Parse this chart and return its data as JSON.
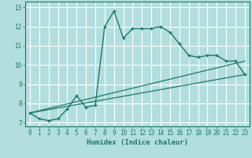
{
  "title": "",
  "xlabel": "Humidex (Indice chaleur)",
  "ylabel": "",
  "bg_color": "#b2dede",
  "grid_color": "#ffffff",
  "line_color": "#1a7a6a",
  "xlim": [
    -0.5,
    23.5
  ],
  "ylim": [
    6.8,
    13.3
  ],
  "yticks": [
    7,
    8,
    9,
    10,
    11,
    12,
    13
  ],
  "xticks": [
    0,
    1,
    2,
    3,
    4,
    5,
    6,
    7,
    8,
    9,
    10,
    11,
    12,
    13,
    14,
    15,
    16,
    17,
    18,
    19,
    20,
    21,
    22,
    23
  ],
  "line1_x": [
    0,
    1,
    2,
    3,
    4,
    5,
    6,
    7,
    8,
    9,
    10,
    11,
    12,
    13,
    14,
    15,
    16,
    17,
    18,
    19,
    20,
    21,
    22,
    23
  ],
  "line1_y": [
    7.5,
    7.2,
    7.1,
    7.2,
    7.7,
    8.4,
    7.8,
    7.9,
    12.0,
    12.8,
    11.4,
    11.9,
    11.9,
    11.9,
    12.0,
    11.7,
    11.1,
    10.5,
    10.4,
    10.5,
    10.5,
    10.2,
    10.2,
    9.5
  ],
  "line2_x": [
    0,
    23
  ],
  "line2_y": [
    7.5,
    9.5
  ],
  "line3_x": [
    0,
    23
  ],
  "line3_y": [
    7.5,
    10.2
  ]
}
